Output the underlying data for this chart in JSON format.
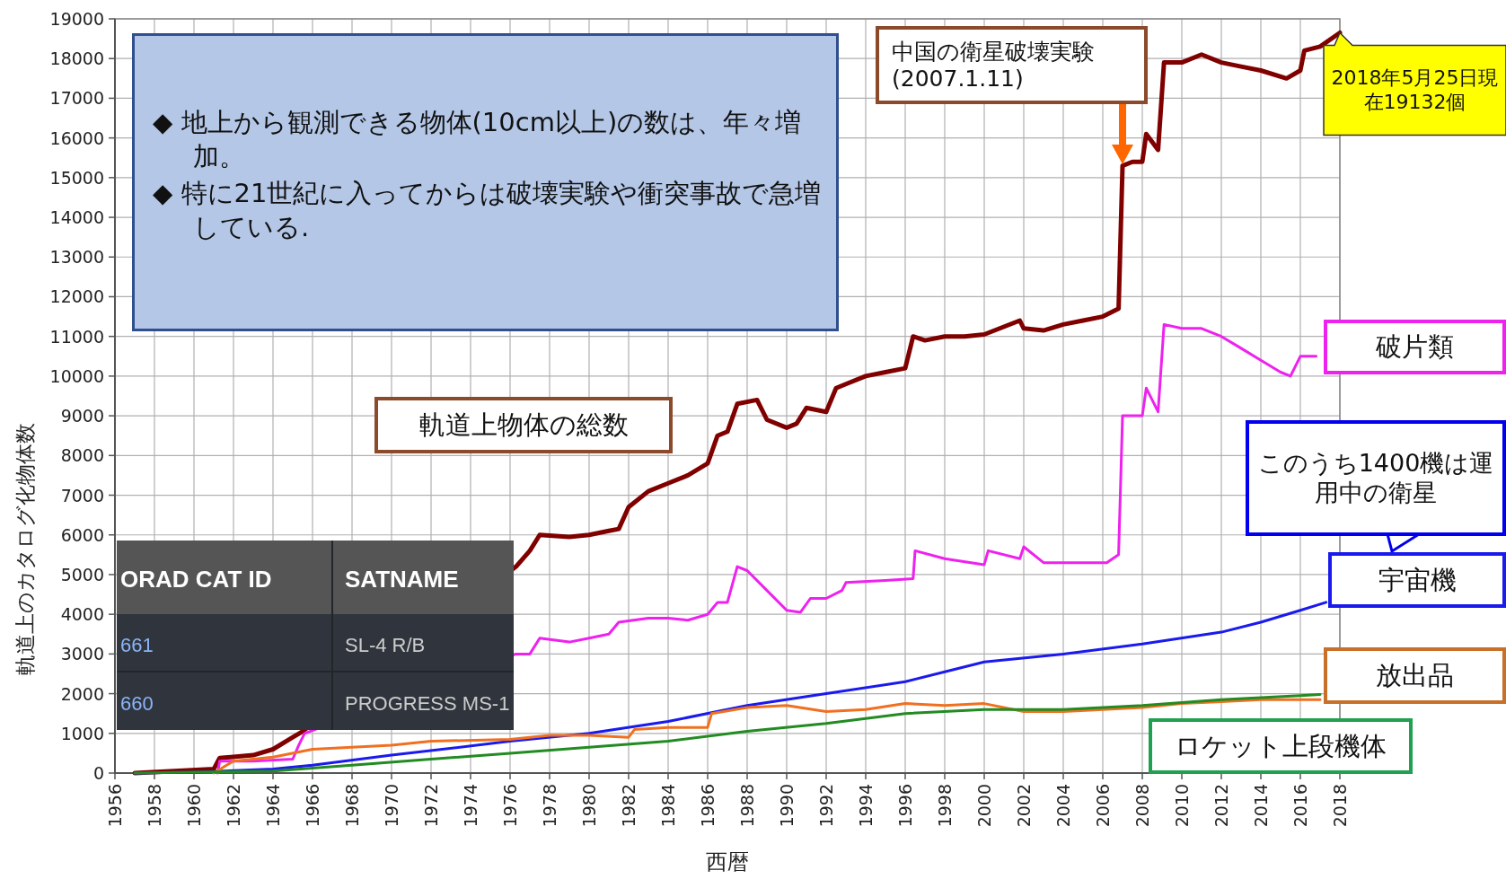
{
  "chart_data": {
    "type": "line",
    "xlabel": "西暦",
    "ylabel": "軌道上のカタログ化物体数",
    "xlim": [
      1956,
      2018
    ],
    "ylim": [
      0,
      19000
    ],
    "xticks": [
      1956,
      1958,
      1960,
      1962,
      1964,
      1966,
      1968,
      1970,
      1972,
      1974,
      1976,
      1978,
      1980,
      1982,
      1984,
      1986,
      1988,
      1990,
      1992,
      1994,
      1996,
      1998,
      2000,
      2002,
      2004,
      2006,
      2008,
      2010,
      2012,
      2014,
      2016,
      2018
    ],
    "yticks": [
      0,
      1000,
      2000,
      3000,
      4000,
      5000,
      6000,
      7000,
      8000,
      9000,
      10000,
      11000,
      12000,
      13000,
      14000,
      15000,
      16000,
      17000,
      18000,
      19000
    ],
    "grid": true,
    "series": [
      {
        "name": "軌道上物体の総数",
        "color": "#800000",
        "x": [
          1957,
          1961,
          1961.3,
          1963,
          1964,
          1965,
          1965.5,
          1976.3,
          1977,
          1977.5,
          1979,
          1980,
          1981,
          1981.5,
          1982,
          1983,
          1984,
          1985,
          1986,
          1986.5,
          1987,
          1987.5,
          1988.5,
          1989,
          1990,
          1990.5,
          1991,
          1992,
          1992.5,
          1993,
          1994,
          1995,
          1996,
          1996.4,
          1997,
          1998,
          1999,
          2000,
          2001.8,
          2002,
          2003,
          2004,
          2005,
          2006,
          2006.8,
          2007,
          2007.5,
          2008,
          2008.2,
          2008.8,
          2009.1,
          2010,
          2011,
          2012,
          2013,
          2014,
          2015.3,
          2016,
          2016.2,
          2017,
          2018
        ],
        "values": [
          0,
          100,
          380,
          450,
          600,
          900,
          1050,
          5200,
          5600,
          6000,
          5950,
          6000,
          6100,
          6150,
          6700,
          7100,
          7300,
          7500,
          7800,
          8500,
          8600,
          9300,
          9400,
          8900,
          8700,
          8800,
          9200,
          9100,
          9700,
          9800,
          10000,
          10100,
          10200,
          11000,
          10900,
          11000,
          11000,
          11050,
          11400,
          11200,
          11150,
          11300,
          11400,
          11500,
          11700,
          15300,
          15400,
          15400,
          16100,
          15700,
          17900,
          17900,
          18100,
          17900,
          17800,
          17700,
          17500,
          17700,
          18200,
          18300,
          18650
        ]
      },
      {
        "name": "破片類",
        "color": "#ee22ee",
        "x": [
          1961.2,
          1961.3,
          1963,
          1965,
          1965.3,
          1965.6,
          1976.3,
          1977,
          1977.5,
          1979,
          1980,
          1981,
          1981.5,
          1983,
          1984,
          1985,
          1986,
          1986.5,
          1987,
          1987.5,
          1988,
          1989,
          1990,
          1990.7,
          1991.2,
          1992,
          1992.8,
          1993,
          1995,
          1996.4,
          1996.5,
          1998,
          2000,
          2000.2,
          2001.8,
          2002,
          2003,
          2004,
          2005,
          2006.2,
          2006.8,
          2007,
          2008,
          2008.2,
          2008.8,
          2009.1,
          2010,
          2011,
          2012,
          2013,
          2014,
          2015,
          2015.5,
          2016,
          2016.8
        ],
        "values": [
          0,
          300,
          300,
          350,
          700,
          1000,
          3000,
          3000,
          3400,
          3300,
          3400,
          3500,
          3800,
          3900,
          3900,
          3850,
          4000,
          4300,
          4300,
          5200,
          5100,
          4600,
          4100,
          4050,
          4400,
          4400,
          4600,
          4800,
          4850,
          4900,
          5600,
          5400,
          5250,
          5600,
          5400,
          5700,
          5300,
          5300,
          5300,
          5300,
          5500,
          9000,
          9000,
          9700,
          9100,
          11300,
          11200,
          11200,
          11000,
          10700,
          10400,
          10100,
          10000,
          10500,
          10500
        ]
      },
      {
        "name": "宇宙機",
        "color": "#1a1aee",
        "x": [
          1957,
          1960,
          1964,
          1966,
          1970,
          1976,
          1980,
          1984,
          1988,
          1992,
          1996,
          1998,
          2000,
          2004,
          2008,
          2012,
          2014,
          2016,
          2017.3
        ],
        "values": [
          0,
          20,
          100,
          200,
          450,
          800,
          1000,
          1300,
          1700,
          2000,
          2300,
          2550,
          2800,
          3000,
          3250,
          3550,
          3800,
          4100,
          4300
        ]
      },
      {
        "name": "放出品",
        "color": "#f07020",
        "x": [
          1961,
          1962,
          1963,
          1964,
          1966,
          1968,
          1970,
          1972,
          1976,
          1978,
          1980,
          1982,
          1982.3,
          1984,
          1986,
          1986.2,
          1988,
          1990,
          1992,
          1994,
          1996,
          1998,
          2000,
          2002,
          2004,
          2006,
          2008,
          2010,
          2012,
          2014,
          2016,
          2017
        ],
        "values": [
          0,
          300,
          350,
          400,
          600,
          650,
          700,
          800,
          850,
          950,
          950,
          900,
          1100,
          1150,
          1150,
          1500,
          1650,
          1700,
          1550,
          1600,
          1750,
          1700,
          1750,
          1550,
          1550,
          1600,
          1650,
          1750,
          1800,
          1850,
          1850,
          1850
        ]
      },
      {
        "name": "ロケット上段機体",
        "color": "#228b22",
        "x": [
          1957,
          1960,
          1964,
          1968,
          1972,
          1976,
          1980,
          1984,
          1988,
          1992,
          1996,
          2000,
          2004,
          2008,
          2012,
          2016,
          2017
        ],
        "values": [
          0,
          20,
          50,
          200,
          350,
          500,
          650,
          800,
          1050,
          1250,
          1500,
          1600,
          1600,
          1700,
          1850,
          1950,
          1980
        ]
      }
    ],
    "annotations": [
      "◆ 地上から観測できる物体(10cm以上)の数は、年々増加。",
      "◆ 特に21世紀に入ってからは破壊実験や衝突事故で急増している.",
      "中国の衛星破壊実験(2007.1.11)",
      {
        "text": "2018年5月25日現在19132個",
        "x": 2018,
        "y": 18650
      },
      "このうち1400機は運用中の衛星",
      "ORAD CAT ID",
      "SATNAME",
      "661",
      "SL-4 R/B",
      "660",
      "PROGRESS MS-1"
    ]
  }
}
